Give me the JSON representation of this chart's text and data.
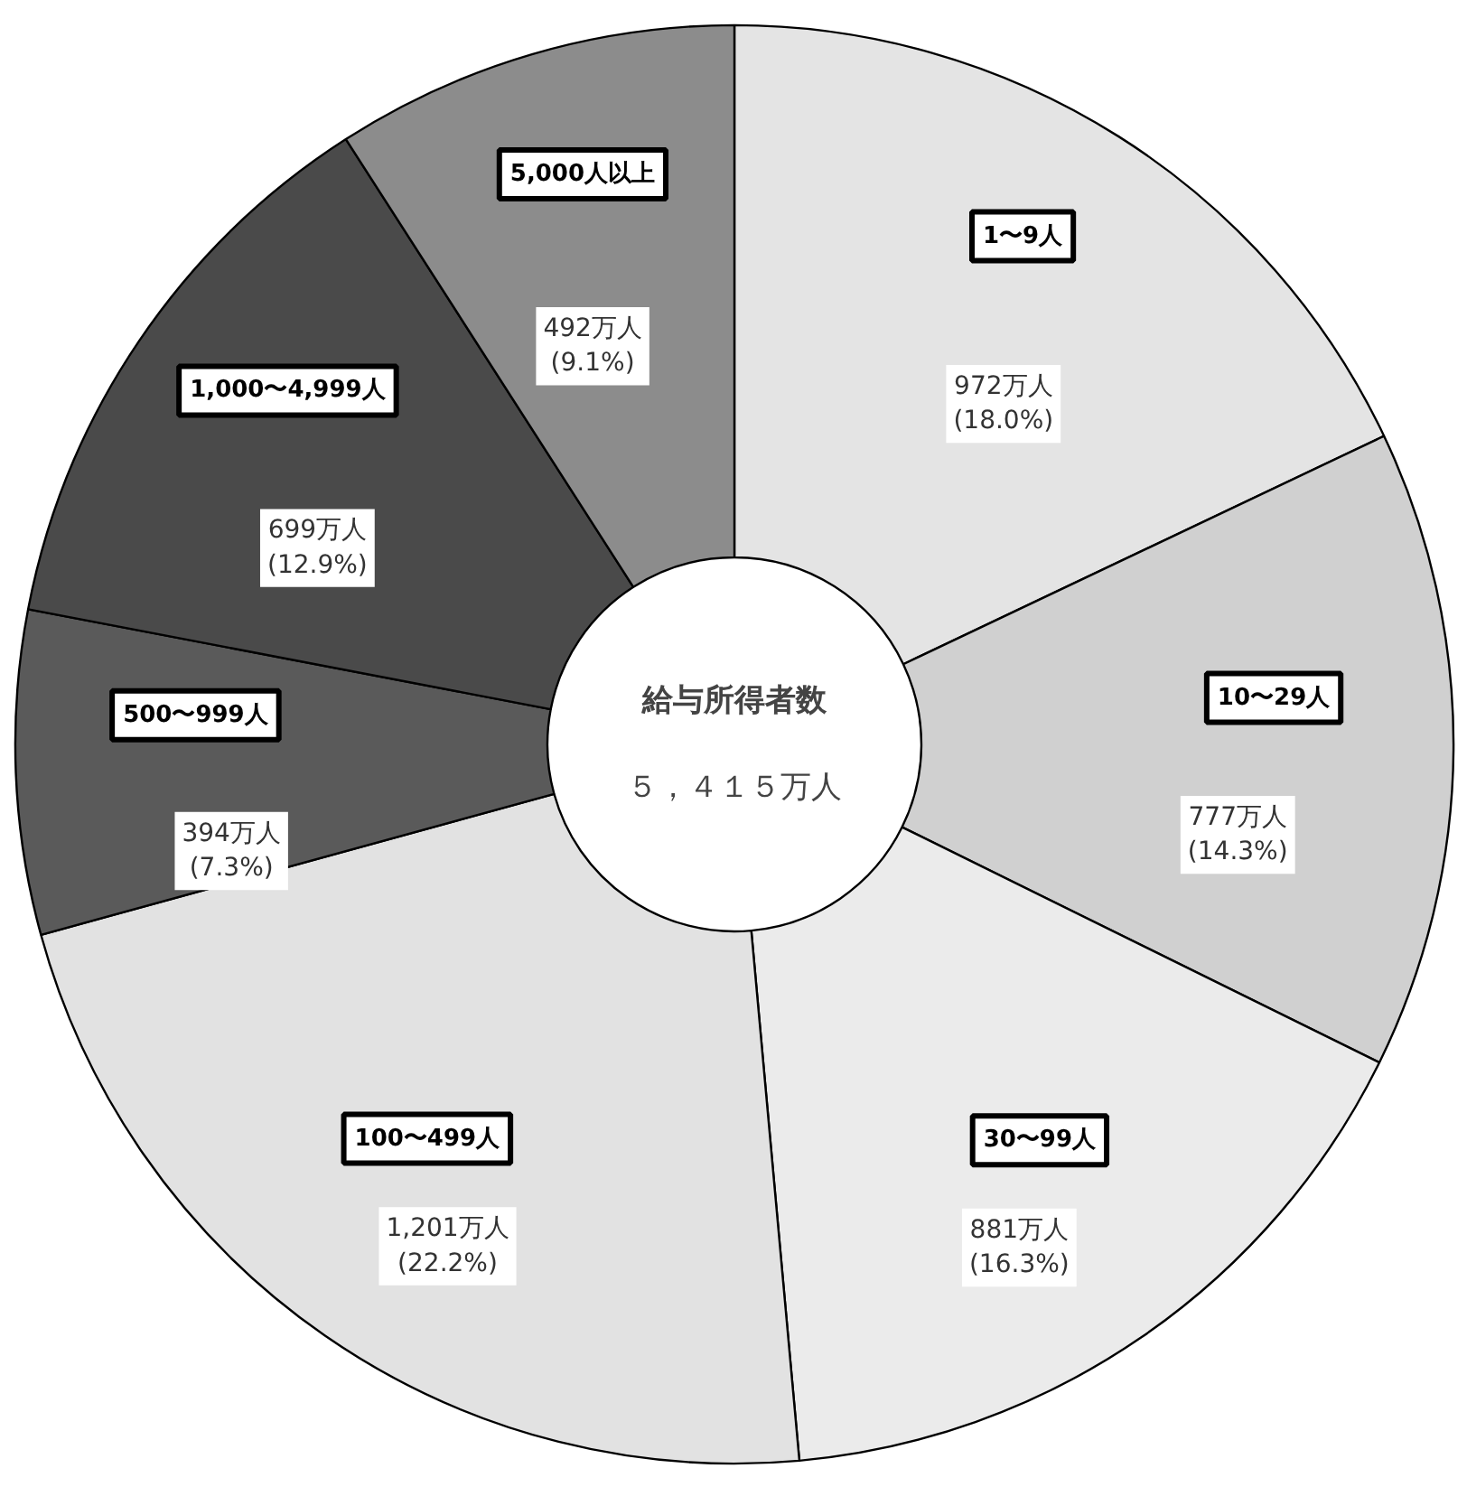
{
  "chart_data": {
    "type": "donut",
    "categories": [
      "1〜9人",
      "10〜29人",
      "30〜99人",
      "100〜499人",
      "500〜999人",
      "1,000〜4,999人",
      "5,000人以上"
    ],
    "values": [
      972,
      777,
      881,
      1201,
      394,
      699,
      492
    ],
    "value_labels": [
      "972万人\n(18.0%)",
      "777万人\n(14.3%)",
      "881万人\n(16.3%)",
      "1,201万人\n(22.2%)",
      "394万人\n(7.3%)",
      "699万人\n(12.9%)",
      "492万人\n(9.1%)"
    ],
    "colors": [
      "#e4e4e4",
      "#d0d0d0",
      "#ebebeb",
      "#e2e2e2",
      "#5a5a5a",
      "#4a4a4a",
      "#8c8c8c"
    ],
    "annotations": [
      "給与所得者数",
      "５，４１５万人"
    ]
  }
}
